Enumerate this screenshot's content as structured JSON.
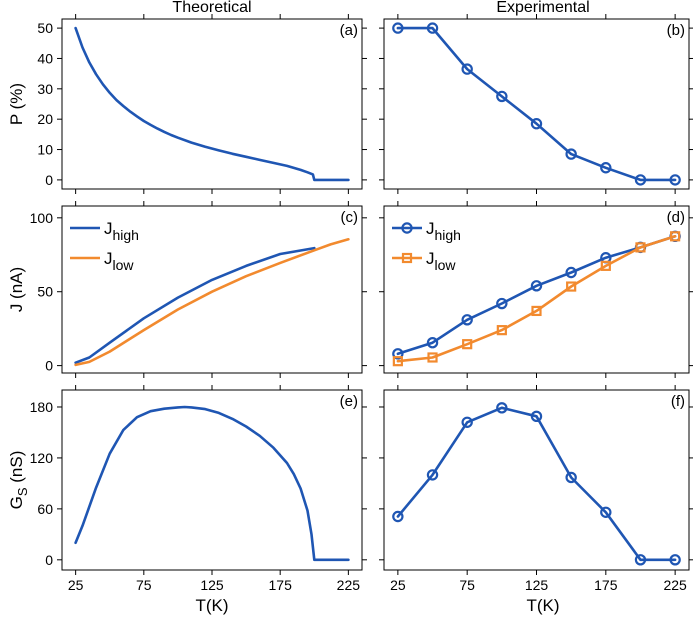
{
  "columns": {
    "left_title": "Theoretical",
    "right_title": "Experimental"
  },
  "colors": {
    "high": "#1f56b3",
    "low": "#f28a2e"
  },
  "x_axis": {
    "label": "T(K)",
    "ticks": [
      25,
      75,
      125,
      175,
      225
    ],
    "range": [
      15,
      235
    ]
  },
  "chart_data": [
    {
      "id": "a",
      "type": "line",
      "panel_label": "(a)",
      "ylabel": "P (%)",
      "ylim": [
        -3,
        53
      ],
      "yticks": [
        0,
        10,
        20,
        30,
        40,
        50
      ],
      "series": [
        {
          "name": "P",
          "color_key": "high",
          "marker": "none",
          "x": [
            25,
            30,
            35,
            40,
            45,
            50,
            55,
            60,
            65,
            70,
            75,
            80,
            85,
            90,
            95,
            100,
            110,
            120,
            130,
            140,
            150,
            160,
            170,
            180,
            190,
            195,
            199,
            200,
            210,
            220,
            225
          ],
          "y": [
            50,
            43.6,
            38.7,
            34.8,
            31.5,
            28.7,
            26.3,
            24.3,
            22.5,
            20.9,
            19.4,
            18.1,
            16.9,
            15.8,
            14.8,
            13.9,
            12.3,
            10.9,
            9.7,
            8.6,
            7.6,
            6.6,
            5.6,
            4.6,
            3.3,
            2.5,
            1.8,
            0,
            0,
            0,
            0
          ]
        }
      ]
    },
    {
      "id": "b",
      "type": "line",
      "panel_label": "(b)",
      "ylabel": "",
      "ylim": [
        -3,
        53
      ],
      "yticks": [
        0,
        10,
        20,
        30,
        40,
        50
      ],
      "series": [
        {
          "name": "P",
          "color_key": "high",
          "marker": "circle",
          "x": [
            25,
            50,
            75,
            100,
            125,
            150,
            175,
            200,
            225
          ],
          "y": [
            50,
            50,
            36.5,
            27.5,
            18.5,
            8.5,
            4,
            0,
            0
          ]
        }
      ]
    },
    {
      "id": "c",
      "type": "line",
      "panel_label": "(c)",
      "ylabel": "J (nA)",
      "ylim": [
        -5,
        108
      ],
      "yticks": [
        0,
        50,
        100
      ],
      "legend": {
        "placement": "top-left",
        "entries": [
          {
            "base": "J",
            "sub": "high",
            "color_key": "high",
            "marker": "none"
          },
          {
            "base": "J",
            "sub": "low",
            "color_key": "low",
            "marker": "none"
          }
        ]
      },
      "series": [
        {
          "name": "J_high",
          "color_key": "high",
          "marker": "none",
          "x": [
            25,
            35,
            50,
            75,
            100,
            125,
            150,
            175,
            200
          ],
          "y": [
            2,
            5.5,
            15.5,
            32,
            46,
            58,
            67.5,
            75.5,
            79.5
          ]
        },
        {
          "name": "J_low",
          "color_key": "low",
          "marker": "none",
          "x": [
            25,
            35,
            50,
            75,
            100,
            125,
            150,
            175,
            200,
            212,
            225
          ],
          "y": [
            0.5,
            2.5,
            9.5,
            24,
            38,
            50,
            60.5,
            69.5,
            78,
            82,
            85.5
          ]
        }
      ]
    },
    {
      "id": "d",
      "type": "line",
      "panel_label": "(d)",
      "ylabel": "",
      "ylim": [
        -5,
        108
      ],
      "yticks": [
        0,
        50,
        100
      ],
      "legend": {
        "placement": "top-left",
        "entries": [
          {
            "base": "J",
            "sub": "high",
            "color_key": "high",
            "marker": "circle"
          },
          {
            "base": "J",
            "sub": "low",
            "color_key": "low",
            "marker": "square"
          }
        ]
      },
      "series": [
        {
          "name": "J_high",
          "color_key": "high",
          "marker": "circle",
          "x": [
            25,
            50,
            75,
            100,
            125,
            150,
            175,
            200,
            225
          ],
          "y": [
            8,
            15.5,
            31,
            42,
            54,
            63,
            73,
            80,
            87.5
          ]
        },
        {
          "name": "J_low",
          "color_key": "low",
          "marker": "square",
          "x": [
            25,
            50,
            75,
            100,
            125,
            150,
            175,
            200,
            225
          ],
          "y": [
            3,
            5.5,
            14.5,
            24,
            37,
            53.5,
            67.5,
            80,
            87.5
          ]
        }
      ]
    },
    {
      "id": "e",
      "type": "line",
      "panel_label": "(e)",
      "ylabel": "G_S (nS)",
      "ylim": [
        -12,
        200
      ],
      "yticks": [
        0,
        60,
        120,
        180
      ],
      "series": [
        {
          "name": "G_S",
          "color_key": "high",
          "marker": "none",
          "x": [
            25,
            30,
            40,
            50,
            60,
            70,
            80,
            90,
            100,
            105,
            110,
            120,
            130,
            140,
            150,
            160,
            170,
            180,
            185,
            190,
            195,
            198,
            200,
            210,
            220,
            225
          ],
          "y": [
            20,
            40,
            85,
            125,
            153,
            168,
            175,
            178,
            179.5,
            180,
            179.5,
            177.5,
            173,
            166,
            157,
            146,
            132,
            114,
            101,
            84,
            58,
            30,
            0,
            0,
            0,
            0
          ]
        }
      ]
    },
    {
      "id": "f",
      "type": "line",
      "panel_label": "(f)",
      "ylabel": "",
      "ylim": [
        -12,
        200
      ],
      "yticks": [
        0,
        60,
        120,
        180
      ],
      "series": [
        {
          "name": "G_S",
          "color_key": "high",
          "marker": "circle",
          "x": [
            25,
            50,
            75,
            100,
            125,
            150,
            175,
            200,
            225
          ],
          "y": [
            51,
            100,
            162,
            179,
            169,
            97,
            56,
            0,
            0
          ]
        }
      ]
    }
  ]
}
